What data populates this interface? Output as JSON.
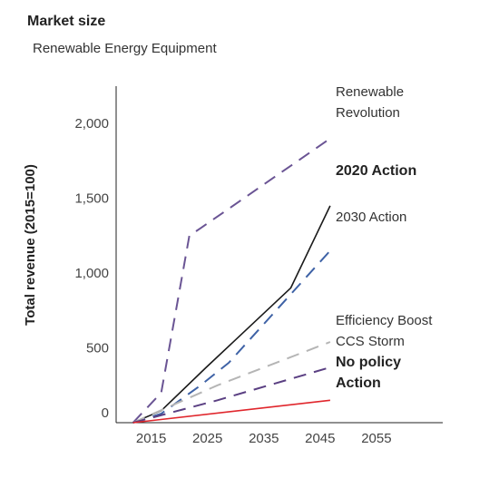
{
  "chart_data": {
    "type": "line",
    "title": "Market size",
    "subtitle": "Renewable Energy Equipment",
    "xlabel": "",
    "ylabel": "Total revenue (2015=100)",
    "x_ticks": [
      "2015",
      "2025",
      "2035",
      "2045",
      "2055"
    ],
    "y_ticks": [
      "0",
      "500",
      "1,000",
      "1,500",
      "2,000"
    ],
    "xlim": [
      2012,
      2070
    ],
    "ylim": [
      0,
      2250
    ],
    "grid": false,
    "legend": "direct-labels-right",
    "series": [
      {
        "name_lines": [
          "Renewable",
          "Revolution"
        ],
        "color": "#6a5494",
        "dash": "dashed",
        "bold_label": false,
        "x": [
          2015,
          2020,
          2025,
          2027,
          2050
        ],
        "y": [
          0,
          200,
          1250,
          1300,
          1900
        ]
      },
      {
        "name_lines": [
          "2020 Action"
        ],
        "color": "#1a1a1a",
        "dash": "solid",
        "bold_label": true,
        "x": [
          2015,
          2020,
          2028,
          2043,
          2050
        ],
        "y": [
          0,
          80,
          370,
          900,
          1450
        ]
      },
      {
        "name_lines": [
          "2030 Action"
        ],
        "color": "#3e62a6",
        "dash": "dashed",
        "bold_label": false,
        "x": [
          2015,
          2020,
          2027,
          2032,
          2050
        ],
        "y": [
          0,
          60,
          250,
          400,
          1150
        ]
      },
      {
        "name_lines": [
          "Efficiency Boost"
        ],
        "color": "#b5b5b5",
        "dash": "dashed",
        "bold_label": false,
        "x": [
          2015,
          2030,
          2050
        ],
        "y": [
          0,
          250,
          540
        ]
      },
      {
        "name_lines": [
          "CCS Storm"
        ],
        "color": "#5a3f82",
        "dash": "dashed",
        "bold_label": false,
        "x": [
          2015,
          2030,
          2050
        ],
        "y": [
          0,
          150,
          370
        ]
      },
      {
        "name_lines": [
          "No policy",
          "Action"
        ],
        "color": "#e0262c",
        "dash": "solid",
        "bold_label": true,
        "x": [
          2015,
          2050
        ],
        "y": [
          0,
          150
        ]
      }
    ]
  }
}
